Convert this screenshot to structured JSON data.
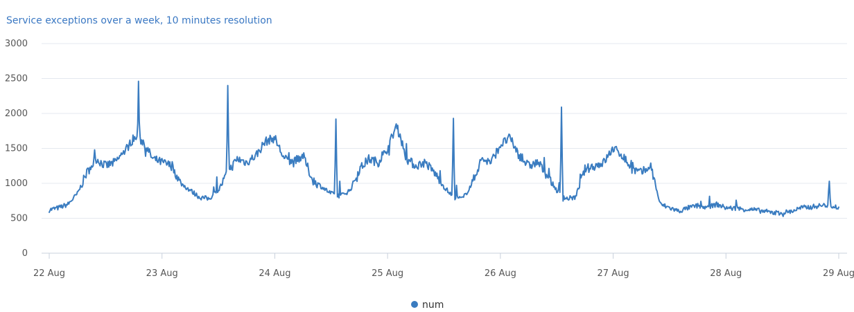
{
  "chart_data": {
    "type": "line",
    "title": "Service exceptions over a week, 10 minutes resolution",
    "x_ticks": [
      "22 Aug",
      "23 Aug",
      "24 Aug",
      "25 Aug",
      "26 Aug",
      "27 Aug",
      "28 Aug",
      "29 Aug"
    ],
    "y_ticks": [
      "0",
      "500",
      "1000",
      "1500",
      "2000",
      "2500",
      "3000"
    ],
    "xlim": [
      "2022-08-22",
      "2022-08-29"
    ],
    "ylim": [
      0,
      3000
    ],
    "grid": "horizontal",
    "legend": "bottom-center",
    "series": [
      {
        "name": "num",
        "color": "#3a7cc0",
        "x": [
          "08-22 00:00",
          "08-22 02:00",
          "08-22 04:00",
          "08-22 06:00",
          "08-22 08:00",
          "08-22 10:00",
          "08-22 12:00",
          "08-22 14:00",
          "08-22 16:00",
          "08-22 18:00",
          "08-22 20:00",
          "08-22 22:00",
          "08-23 00:00",
          "08-23 02:00",
          "08-23 04:00",
          "08-23 06:00",
          "08-23 08:00",
          "08-23 10:00",
          "08-23 12:00",
          "08-23 14:00",
          "08-23 16:00",
          "08-23 18:00",
          "08-23 20:00",
          "08-23 22:00",
          "08-24 00:00",
          "08-24 02:00",
          "08-24 04:00",
          "08-24 06:00",
          "08-24 08:00",
          "08-24 10:00",
          "08-24 12:00",
          "08-24 14:00",
          "08-24 16:00",
          "08-24 18:00",
          "08-24 20:00",
          "08-24 22:00",
          "08-25 00:00",
          "08-25 02:00",
          "08-25 04:00",
          "08-25 06:00",
          "08-25 08:00",
          "08-25 10:00",
          "08-25 12:00",
          "08-25 14:00",
          "08-25 16:00",
          "08-25 18:00",
          "08-25 20:00",
          "08-25 22:00",
          "08-26 00:00",
          "08-26 02:00",
          "08-26 04:00",
          "08-26 06:00",
          "08-26 08:00",
          "08-26 10:00",
          "08-26 12:00",
          "08-26 14:00",
          "08-26 16:00",
          "08-26 18:00",
          "08-26 20:00",
          "08-26 22:00",
          "08-27 00:00",
          "08-27 02:00",
          "08-27 04:00",
          "08-27 06:00",
          "08-27 08:00",
          "08-27 10:00",
          "08-27 12:00",
          "08-27 14:00",
          "08-27 16:00",
          "08-27 18:00",
          "08-27 20:00",
          "08-27 22:00",
          "08-28 00:00",
          "08-28 02:00",
          "08-28 04:00",
          "08-28 06:00",
          "08-28 08:00",
          "08-28 10:00",
          "08-28 12:00",
          "08-28 14:00",
          "08-28 16:00",
          "08-28 18:00",
          "08-28 20:00",
          "08-28 22:00",
          "08-29 00:00"
        ],
        "values": [
          620,
          650,
          700,
          850,
          1150,
          1350,
          1250,
          1300,
          1450,
          1650,
          1600,
          1350,
          1300,
          1250,
          1000,
          900,
          800,
          780,
          900,
          1150,
          1350,
          1300,
          1400,
          1600,
          1650,
          1350,
          1300,
          1400,
          1050,
          950,
          850,
          820,
          900,
          1200,
          1350,
          1300,
          1500,
          1850,
          1350,
          1250,
          1300,
          1150,
          950,
          800,
          780,
          1000,
          1350,
          1300,
          1550,
          1650,
          1400,
          1250,
          1300,
          1100,
          900,
          780,
          800,
          1200,
          1250,
          1300,
          1500,
          1400,
          1200,
          1150,
          1250,
          700,
          650,
          600,
          650,
          680,
          650,
          700,
          650,
          640,
          630,
          620,
          600,
          580,
          580,
          600,
          650,
          660,
          680,
          690,
          650
        ],
        "spikes": [
          {
            "x": "08-22 19:00",
            "value": 2460
          },
          {
            "x": "08-23 14:00",
            "value": 2400
          },
          {
            "x": "08-24 13:00",
            "value": 1920
          },
          {
            "x": "08-25 14:00",
            "value": 1930
          },
          {
            "x": "08-26 13:00",
            "value": 2090
          },
          {
            "x": "08-28 22:00",
            "value": 1030
          }
        ]
      }
    ]
  }
}
